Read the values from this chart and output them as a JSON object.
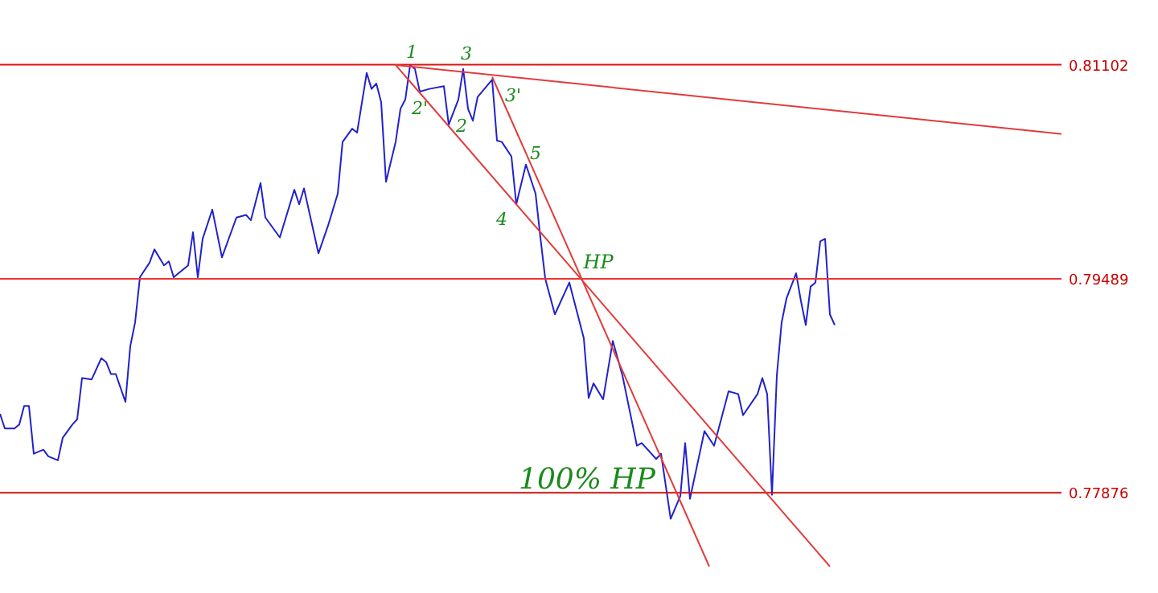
{
  "chart_data": {
    "type": "line",
    "categories": [
      null,
      null,
      null,
      null,
      null,
      null,
      null,
      null,
      null,
      null,
      null,
      null,
      null,
      null,
      null,
      null,
      null,
      null,
      null,
      null,
      null,
      null,
      null,
      null,
      null,
      null,
      null,
      null,
      null,
      null,
      null,
      null,
      null,
      null,
      null,
      null,
      null,
      null,
      null,
      null,
      null,
      null,
      null,
      null,
      null,
      null,
      null,
      null,
      null,
      null,
      null,
      null,
      null,
      null,
      null,
      null,
      null,
      null,
      null,
      null,
      null,
      null,
      null,
      null,
      null,
      null,
      null,
      null,
      null,
      null,
      null,
      null,
      null,
      null,
      null,
      null,
      null,
      null,
      null,
      null,
      null,
      null,
      null,
      null,
      null,
      null,
      null,
      null,
      null,
      null,
      null,
      null,
      null,
      null,
      null,
      null,
      null,
      null,
      null,
      null,
      null,
      null,
      null,
      null,
      null,
      null,
      null,
      null,
      null,
      null,
      null,
      null,
      null,
      null,
      null,
      null,
      null,
      null,
      null,
      null,
      null,
      null,
      null,
      null,
      null,
      null,
      null,
      null,
      null,
      null,
      null,
      null,
      null,
      null,
      null,
      null,
      null,
      null,
      null,
      null,
      null,
      null,
      null,
      null,
      null,
      null,
      null,
      null,
      null,
      null,
      null,
      null,
      null,
      null,
      null,
      null,
      null,
      null,
      null,
      null,
      null,
      null,
      null,
      null,
      null,
      null,
      null,
      null,
      null,
      null,
      null,
      null,
      null,
      null,
      null,
      null,
      null,
      null,
      null,
      null,
      null,
      null,
      null,
      null,
      null,
      null,
      null,
      null,
      null,
      null,
      null,
      null,
      null,
      null,
      null,
      null,
      null,
      null,
      null,
      null,
      null,
      null,
      null,
      null,
      null,
      null,
      null,
      null,
      null,
      null,
      null,
      null,
      null,
      null,
      null,
      null,
      null,
      null,
      null,
      null,
      null
    ],
    "series": [
      {
        "color": "#2222cc",
        "values": [
          0.7847,
          0.7836,
          null,
          0.7836,
          0.7839,
          0.7853,
          0.7853,
          0.7817,
          null,
          0.782,
          0.7815,
          null,
          0.7812,
          0.7829,
          null,
          0.7839,
          0.7843,
          0.7874,
          null,
          0.7873,
          null,
          0.7889,
          0.7886,
          0.7877,
          0.7877,
          null,
          0.7856,
          0.7898,
          0.7916,
          0.795,
          null,
          0.7961,
          0.7971,
          null,
          0.7959,
          0.7962,
          0.795,
          null,
          null,
          0.7959,
          0.7984,
          0.795,
          0.7979,
          null,
          0.8001,
          null,
          0.7965,
          null,
          null,
          0.7995,
          null,
          0.7997,
          0.7993,
          null,
          0.8021,
          0.7995,
          null,
          null,
          0.798,
          null,
          null,
          0.8016,
          0.8005,
          0.8017,
          null,
          null,
          0.7968,
          null,
          0.7989,
          null,
          0.8013,
          0.8052,
          null,
          0.8062,
          0.8059,
          null,
          0.8104,
          0.8092,
          0.8096,
          0.8082,
          0.8022,
          null,
          0.8052,
          0.8077,
          0.8084,
          0.811,
          0.8107,
          0.809,
          null,
          0.8092,
          null,
          null,
          0.8094,
          0.8065,
          null,
          0.8084,
          0.8107,
          0.8077,
          0.8068,
          0.8086,
          null,
          null,
          0.8099,
          0.8053,
          0.8052,
          null,
          0.8041,
          0.8005,
          null,
          0.8035,
          null,
          0.8013,
          0.798,
          0.7949,
          null,
          0.7922,
          null,
          null,
          0.7946,
          null,
          null,
          0.7904,
          0.7859,
          0.787,
          null,
          0.7858,
          null,
          0.7902,
          null,
          0.7876,
          null,
          null,
          0.7823,
          0.7825,
          null,
          null,
          0.7813,
          0.7817,
          null,
          0.7768,
          null,
          0.7785,
          0.7825,
          0.7783,
          null,
          0.7817,
          0.7834,
          null,
          0.7823,
          null,
          null,
          0.7864,
          null,
          0.7862,
          0.7846,
          null,
          null,
          0.7862,
          0.7874,
          0.7862,
          0.7786,
          0.7876,
          0.7916,
          0.7934,
          null,
          0.7953,
          0.7932,
          0.7914,
          0.7943,
          0.7946,
          0.7977,
          0.7979,
          0.7922,
          0.7914,
          null,
          null,
          null,
          null,
          null,
          null,
          null,
          null,
          null,
          null,
          null,
          null,
          null,
          null,
          null,
          null,
          null,
          null,
          null,
          null,
          null,
          null,
          null,
          null,
          null,
          null,
          null,
          null,
          null,
          null,
          null,
          null,
          null,
          null,
          null,
          null,
          null,
          null,
          null,
          null,
          null,
          null,
          null,
          null,
          null,
          null,
          null
        ]
      },
      {
        "type": "line",
        "color": "#e23b3b",
        "values": [
          null,
          null,
          null,
          null,
          null,
          null,
          null,
          null,
          null,
          null,
          null,
          null,
          null,
          null,
          null,
          null,
          null,
          null,
          null,
          null,
          null,
          null,
          null,
          null,
          null,
          null,
          null,
          null,
          null,
          null,
          null,
          null,
          null,
          null,
          null,
          null,
          null,
          null,
          null,
          null,
          null,
          null,
          null,
          null,
          null,
          null,
          null,
          null,
          null,
          null,
          null,
          null,
          null,
          null,
          null,
          null,
          null,
          null,
          null,
          null,
          null,
          null,
          null,
          null,
          null,
          null,
          null,
          null,
          null,
          null,
          null,
          null,
          null,
          null,
          null,
          null,
          null,
          null,
          null,
          null,
          null,
          null,
          0.811,
          null,
          null,
          null,
          null,
          null,
          null,
          null,
          null,
          null,
          null,
          null,
          null,
          null,
          null,
          null,
          null,
          null,
          null,
          null,
          null,
          null,
          null,
          null,
          null,
          null,
          null,
          null,
          null,
          null,
          null,
          null,
          null,
          null,
          null,
          null,
          null,
          null,
          null,
          null,
          null,
          null,
          null,
          null,
          null,
          null,
          null,
          null,
          null,
          null,
          null,
          null,
          null,
          null,
          null,
          null,
          null,
          null,
          null,
          null,
          null,
          null,
          null,
          null,
          null,
          null,
          null,
          null,
          null,
          null,
          null,
          null,
          null,
          null,
          null,
          null,
          null,
          null,
          null,
          null,
          null,
          null,
          null,
          null,
          null,
          null,
          null,
          null,
          null,
          null,
          null,
          null,
          null,
          null,
          null,
          null,
          null,
          null,
          null,
          null,
          null,
          null,
          null,
          null,
          null,
          null,
          null,
          null,
          null,
          null,
          null,
          null,
          null,
          null,
          null,
          null,
          null,
          null,
          null,
          null,
          null,
          null,
          null,
          null,
          null,
          null,
          null,
          null,
          null,
          null,
          null,
          null,
          null,
          null,
          null,
          null,
          null,
          null,
          0.8058
        ]
      },
      {
        "type": "line",
        "color": "#e23b3b",
        "values": [
          null,
          null,
          null,
          null,
          null,
          null,
          null,
          null,
          null,
          null,
          null,
          null,
          null,
          null,
          null,
          null,
          null,
          null,
          null,
          null,
          null,
          null,
          null,
          null,
          null,
          null,
          null,
          null,
          null,
          null,
          null,
          null,
          null,
          null,
          null,
          null,
          null,
          null,
          null,
          null,
          null,
          null,
          null,
          null,
          null,
          null,
          null,
          null,
          null,
          null,
          null,
          null,
          null,
          null,
          null,
          null,
          null,
          null,
          null,
          null,
          null,
          null,
          null,
          null,
          null,
          null,
          null,
          null,
          null,
          null,
          null,
          null,
          null,
          null,
          null,
          null,
          null,
          null,
          null,
          null,
          null,
          null,
          0.811,
          null,
          null,
          null,
          null,
          null,
          null,
          null,
          null,
          null,
          null,
          null,
          null,
          null,
          null,
          null,
          null,
          null,
          null,
          null,
          null,
          null,
          null,
          null,
          null,
          null,
          null,
          null,
          null,
          null,
          null,
          null,
          null,
          null,
          null,
          null,
          null,
          null,
          null,
          null,
          null,
          null,
          null,
          null,
          null,
          null,
          null,
          null,
          null,
          null,
          null,
          null,
          null,
          null,
          null,
          null,
          null,
          null,
          null,
          null,
          null,
          null,
          null,
          null,
          null,
          null,
          null,
          null,
          null,
          null,
          null,
          null,
          null,
          null,
          null,
          null,
          null,
          null,
          null,
          null,
          null,
          null,
          null,
          null,
          null,
          null,
          null,
          null,
          null,
          null,
          0.7732,
          null,
          null,
          null,
          null,
          null,
          null,
          null,
          null,
          null,
          null,
          null,
          null,
          null,
          null,
          null,
          null,
          null,
          null,
          null,
          null,
          null,
          null,
          null,
          null,
          null,
          null,
          null,
          null,
          null,
          null,
          null,
          null,
          null,
          null,
          null,
          null,
          null,
          null,
          null,
          null,
          null,
          null,
          null,
          null,
          null,
          null,
          null,
          null
        ]
      },
      {
        "type": "line",
        "color": "#e23b3b",
        "values": [
          null,
          null,
          null,
          null,
          null,
          null,
          null,
          null,
          null,
          null,
          null,
          null,
          null,
          null,
          null,
          null,
          null,
          null,
          null,
          null,
          null,
          null,
          null,
          null,
          null,
          null,
          null,
          null,
          null,
          null,
          null,
          null,
          null,
          null,
          null,
          null,
          null,
          null,
          null,
          null,
          null,
          null,
          null,
          null,
          null,
          null,
          null,
          null,
          null,
          null,
          null,
          null,
          null,
          null,
          null,
          null,
          null,
          null,
          null,
          null,
          null,
          null,
          null,
          null,
          null,
          null,
          null,
          null,
          null,
          null,
          null,
          null,
          null,
          null,
          null,
          null,
          null,
          null,
          null,
          null,
          null,
          null,
          null,
          null,
          null,
          null,
          null,
          null,
          null,
          null,
          null,
          null,
          null,
          null,
          null,
          null,
          null,
          null,
          null,
          null,
          null,
          null,
          0.8101,
          null,
          null,
          null,
          null,
          null,
          null,
          null,
          null,
          null,
          null,
          null,
          null,
          null,
          null,
          null,
          null,
          null,
          null,
          null,
          null,
          null,
          null,
          null,
          null,
          null,
          null,
          null,
          null,
          null,
          null,
          null,
          null,
          null,
          null,
          null,
          null,
          null,
          null,
          null,
          null,
          null,
          null,
          null,
          null,
          0.7732,
          null,
          null,
          null,
          null,
          null,
          null,
          null,
          null,
          null,
          null,
          null,
          null,
          null,
          null,
          null,
          null,
          null,
          null,
          null,
          null,
          null,
          null,
          null,
          null,
          null,
          null,
          null,
          null,
          null,
          null,
          null,
          null,
          null,
          null,
          null,
          null,
          null,
          null,
          null,
          null,
          null,
          null,
          null,
          null,
          null,
          null,
          null,
          null,
          null,
          null,
          null,
          null,
          null,
          null,
          null,
          null,
          null,
          null,
          null,
          null,
          null,
          null,
          null,
          null,
          null,
          null,
          null,
          null,
          null,
          null,
          null,
          null,
          null
        ]
      }
    ],
    "ylim": [
      0.7712,
      0.8159
    ],
    "yticks": [
      0.77876,
      0.79489,
      0.81102
    ],
    "tick_labels": "y",
    "ref_lines": [
      {
        "axis": "y",
        "value": 0.81102,
        "color": "#dd1111"
      },
      {
        "axis": "y",
        "value": 0.79489,
        "color": "#ee3333"
      },
      {
        "axis": "y",
        "value": 0.77876,
        "color": "#cc1111"
      }
    ],
    "annotations": [
      "1",
      "2'",
      "3",
      "2",
      "3'",
      "5",
      "4",
      "HP",
      "100% HP"
    ]
  }
}
